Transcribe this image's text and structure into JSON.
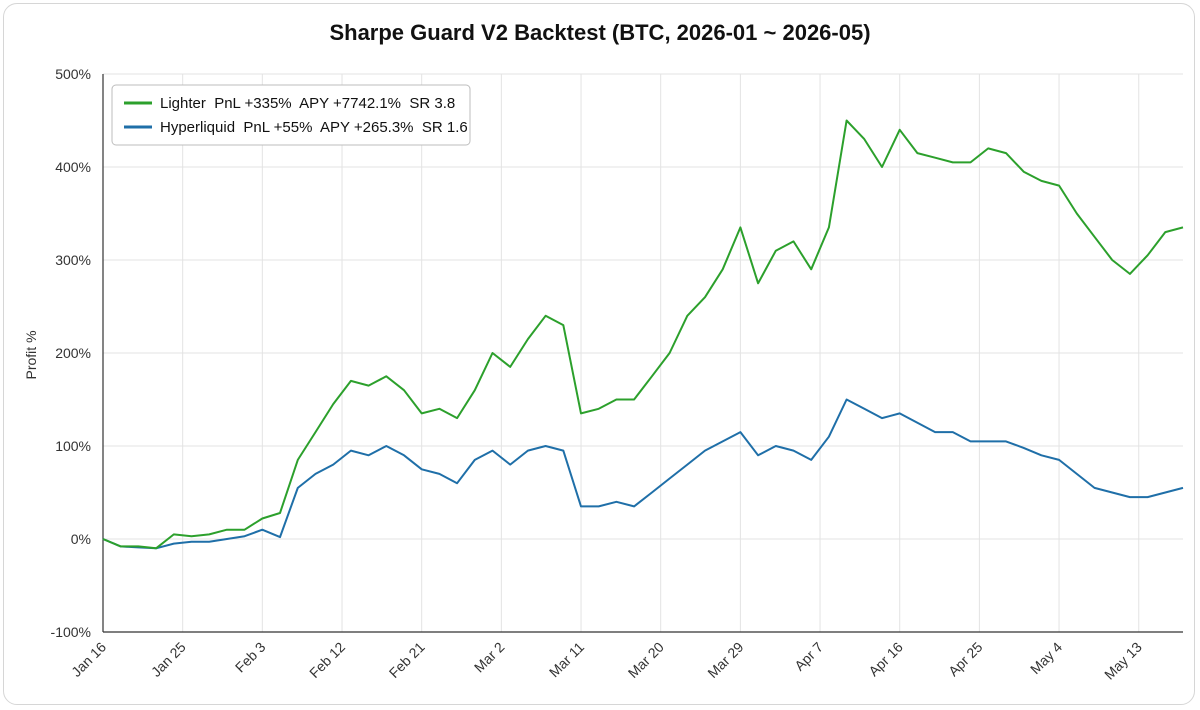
{
  "chart_data": {
    "type": "line",
    "title": "Sharpe Guard V2 Backtest (BTC, 2026-01 ~ 2026-05)",
    "ylabel": "Profit %",
    "xlabel": "",
    "ylim": [
      -100,
      500
    ],
    "yticks": [
      "-100%",
      "0%",
      "100%",
      "200%",
      "300%",
      "400%",
      "500%"
    ],
    "xticks": [
      "Jan 16",
      "Jan 25",
      "Feb 3",
      "Feb 12",
      "Feb 21",
      "Mar 2",
      "Mar 11",
      "Mar 20",
      "Mar 29",
      "Apr 7",
      "Apr 16",
      "Apr 25",
      "May 4",
      "May 13"
    ],
    "grid": true,
    "legend_position": "top-left",
    "x": [
      "2026-01-16",
      "2026-01-18",
      "2026-01-20",
      "2026-01-22",
      "2026-01-24",
      "2026-01-26",
      "2026-01-28",
      "2026-01-30",
      "2026-02-01",
      "2026-02-03",
      "2026-02-05",
      "2026-02-07",
      "2026-02-09",
      "2026-02-11",
      "2026-02-13",
      "2026-02-15",
      "2026-02-17",
      "2026-02-19",
      "2026-02-21",
      "2026-02-23",
      "2026-02-25",
      "2026-02-27",
      "2026-03-01",
      "2026-03-03",
      "2026-03-05",
      "2026-03-07",
      "2026-03-09",
      "2026-03-11",
      "2026-03-13",
      "2026-03-15",
      "2026-03-17",
      "2026-03-19",
      "2026-03-21",
      "2026-03-23",
      "2026-03-25",
      "2026-03-27",
      "2026-03-29",
      "2026-03-31",
      "2026-04-02",
      "2026-04-04",
      "2026-04-06",
      "2026-04-08",
      "2026-04-10",
      "2026-04-12",
      "2026-04-14",
      "2026-04-16",
      "2026-04-18",
      "2026-04-20",
      "2026-04-22",
      "2026-04-24",
      "2026-04-26",
      "2026-04-28",
      "2026-04-30",
      "2026-05-02",
      "2026-05-04",
      "2026-05-06",
      "2026-05-08",
      "2026-05-10",
      "2026-05-12",
      "2026-05-14",
      "2026-05-16",
      "2026-05-18"
    ],
    "series": [
      {
        "name": "Lighter  PnL +335%  APY +7742.1%  SR 3.8",
        "color": "#2ca02c",
        "values": [
          0,
          -8,
          -8,
          -10,
          5,
          3,
          5,
          10,
          10,
          22,
          28,
          85,
          115,
          145,
          170,
          165,
          175,
          160,
          135,
          140,
          130,
          160,
          200,
          185,
          215,
          240,
          230,
          135,
          140,
          150,
          150,
          175,
          200,
          240,
          260,
          290,
          335,
          275,
          310,
          320,
          290,
          335,
          450,
          430,
          400,
          440,
          415,
          410,
          405,
          405,
          420,
          415,
          395,
          385,
          380,
          350,
          325,
          300,
          285,
          305,
          330,
          335
        ]
      },
      {
        "name": "Hyperliquid  PnL +55%  APY +265.3%  SR 1.6",
        "color": "#1f6fa8",
        "values": [
          0,
          -8,
          -9,
          -10,
          -5,
          -3,
          -3,
          0,
          3,
          10,
          2,
          55,
          70,
          80,
          95,
          90,
          100,
          90,
          75,
          70,
          60,
          85,
          95,
          80,
          95,
          100,
          95,
          35,
          35,
          40,
          35,
          50,
          65,
          80,
          95,
          105,
          115,
          90,
          100,
          95,
          85,
          110,
          150,
          140,
          130,
          135,
          125,
          115,
          115,
          105,
          105,
          105,
          98,
          90,
          85,
          70,
          55,
          50,
          45,
          45,
          50,
          55
        ]
      }
    ]
  }
}
